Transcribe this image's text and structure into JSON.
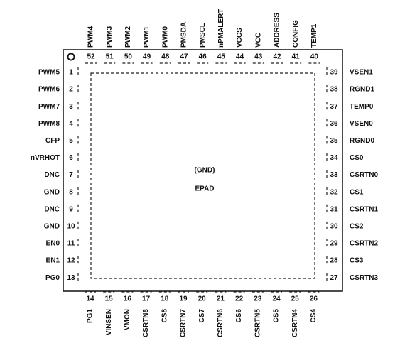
{
  "pins": {
    "left": [
      {
        "number": 1,
        "name": "PWM5"
      },
      {
        "number": 2,
        "name": "PWM6"
      },
      {
        "number": 3,
        "name": "PWM7"
      },
      {
        "number": 4,
        "name": "PWM8"
      },
      {
        "number": 5,
        "name": "CFP"
      },
      {
        "number": 6,
        "name": "nVRHOT"
      },
      {
        "number": 7,
        "name": "DNC"
      },
      {
        "number": 8,
        "name": "GND"
      },
      {
        "number": 9,
        "name": "DNC"
      },
      {
        "number": 10,
        "name": "GND"
      },
      {
        "number": 11,
        "name": "EN0"
      },
      {
        "number": 12,
        "name": "EN1"
      },
      {
        "number": 13,
        "name": "PG0"
      }
    ],
    "bottom": [
      {
        "number": 14,
        "name": "PG1"
      },
      {
        "number": 15,
        "name": "VINSEN"
      },
      {
        "number": 16,
        "name": "VMON"
      },
      {
        "number": 17,
        "name": "CSRTN8"
      },
      {
        "number": 18,
        "name": "CS8"
      },
      {
        "number": 19,
        "name": "CSRTN7"
      },
      {
        "number": 20,
        "name": "CS7"
      },
      {
        "number": 21,
        "name": "CSRTN6"
      },
      {
        "number": 22,
        "name": "CS6"
      },
      {
        "number": 23,
        "name": "CSRTN5"
      },
      {
        "number": 24,
        "name": "CS5"
      },
      {
        "number": 25,
        "name": "CSRTN4"
      },
      {
        "number": 26,
        "name": "CS4"
      }
    ],
    "right": [
      {
        "number": 39,
        "name": "VSEN1"
      },
      {
        "number": 38,
        "name": "RGND1"
      },
      {
        "number": 37,
        "name": "TEMP0"
      },
      {
        "number": 36,
        "name": "VSEN0"
      },
      {
        "number": 35,
        "name": "RGND0"
      },
      {
        "number": 34,
        "name": "CS0"
      },
      {
        "number": 33,
        "name": "CSRTN0"
      },
      {
        "number": 32,
        "name": "CS1"
      },
      {
        "number": 31,
        "name": "CSRTN1"
      },
      {
        "number": 30,
        "name": "CS2"
      },
      {
        "number": 29,
        "name": "CSRTN2"
      },
      {
        "number": 28,
        "name": "CS3"
      },
      {
        "number": 27,
        "name": "CSRTN3"
      }
    ],
    "top": [
      {
        "number": 52,
        "name": "PWM4"
      },
      {
        "number": 51,
        "name": "PWM3"
      },
      {
        "number": 50,
        "name": "PWM2"
      },
      {
        "number": 49,
        "name": "PWM1"
      },
      {
        "number": 48,
        "name": "PWM0"
      },
      {
        "number": 47,
        "name": "PMSDA"
      },
      {
        "number": 46,
        "name": "PMSCL"
      },
      {
        "number": 45,
        "name": "nPMALERT"
      },
      {
        "number": 44,
        "name": "VCCS"
      },
      {
        "number": 43,
        "name": "VCC"
      },
      {
        "number": 42,
        "name": "ADDRESS"
      },
      {
        "number": 41,
        "name": "CONFIG"
      },
      {
        "number": 40,
        "name": "TEMP1"
      }
    ]
  },
  "epad": {
    "line1": "(GND)",
    "line2": "EPAD"
  }
}
